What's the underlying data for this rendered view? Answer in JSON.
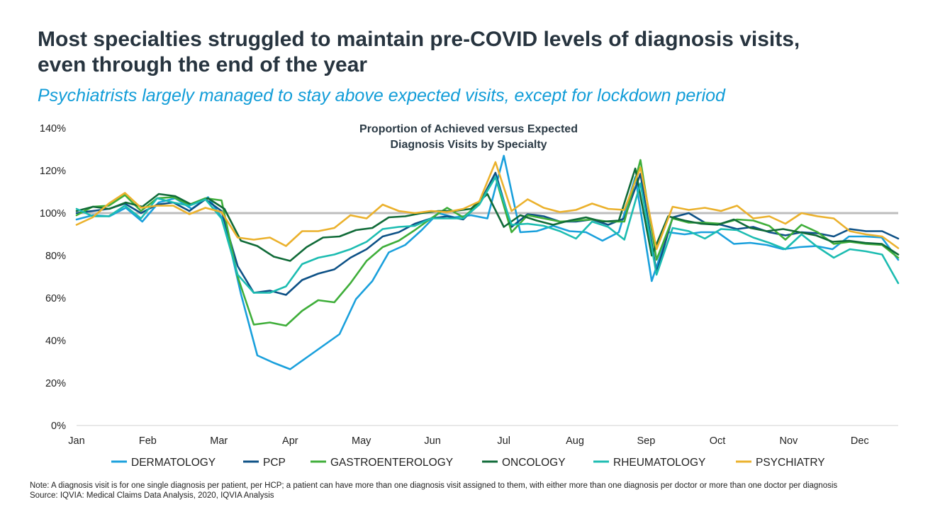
{
  "header": {
    "title_line1": "Most specialties struggled to maintain pre-COVID levels of diagnosis visits,",
    "title_line2": "even through the end of the year",
    "subtitle": "Psychiatrists largely managed to stay above expected visits, except for lockdown period"
  },
  "footer": {
    "note": "Note: A diagnosis visit is for one single diagnosis per patient, per HCP; a patient can have more than one diagnosis visit assigned to them, with either more than one diagnosis per doctor or more than one doctor per diagnosis",
    "source": "Source: IQVIA: Medical Claims Data Analysis, 2020, IQVIA Analysis"
  },
  "chart_data": {
    "type": "line",
    "title": "Proportion of Achieved versus Expected Diagnosis Visits by Specialty",
    "title_lines": [
      "Proportion of Achieved versus Expected",
      "Diagnosis Visits by Specialty"
    ],
    "ylim": [
      0,
      140
    ],
    "yticks": [
      0,
      20,
      40,
      60,
      80,
      100,
      120,
      140
    ],
    "ytick_labels": [
      "0%",
      "20%",
      "40%",
      "60%",
      "80%",
      "100%",
      "120%",
      "140%"
    ],
    "xlim": [
      0,
      50
    ],
    "x_month_labels": [
      "Jan",
      "Feb",
      "Mar",
      "Apr",
      "May",
      "Jun",
      "Jul",
      "Aug",
      "Sep",
      "Oct",
      "Nov",
      "Dec"
    ],
    "x_month_positions": [
      0,
      4.33,
      8.66,
      13,
      17.33,
      21.66,
      26,
      30.33,
      34.66,
      39,
      43.33,
      47.66
    ],
    "reference_line": 100,
    "reference_color": "#bdbdbd",
    "legend_position": "bottom",
    "series": [
      {
        "name": "DERMATOLOGY",
        "color": "#1aa0dc",
        "values": [
          97,
          99,
          98.5,
          102.5,
          96,
          105,
          107,
          102,
          107.5,
          96,
          62,
          33,
          29.5,
          26.5,
          32,
          37.5,
          43,
          59.5,
          68,
          81.5,
          85,
          92,
          100,
          98,
          99,
          97.5,
          127,
          91,
          91.5,
          94,
          91.5,
          91,
          87,
          91,
          117,
          68,
          91,
          90,
          91,
          91,
          85.5,
          86,
          85,
          83,
          84,
          84.5,
          83,
          89,
          89,
          88.5,
          78
        ]
      },
      {
        "name": "PCP",
        "color": "#0d5186",
        "values": [
          100,
          101,
          102,
          104.5,
          100,
          104,
          105,
          101,
          106.5,
          101,
          75,
          62.5,
          63.5,
          61.5,
          68.5,
          71.5,
          73.5,
          79,
          83,
          89,
          91,
          95,
          97.5,
          98.5,
          97,
          104.5,
          119,
          93.5,
          99.5,
          98.5,
          96,
          96,
          97,
          94.5,
          97.5,
          118.5,
          72,
          98,
          100,
          95.5,
          94.5,
          92.5,
          93.5,
          91,
          89.5,
          91,
          90.5,
          89,
          92.5,
          91.5,
          91.5,
          88
        ]
      },
      {
        "name": "GASTROENTEROLOGY",
        "color": "#3fae3a",
        "values": [
          99,
          103,
          103.5,
          108.5,
          101,
          107,
          107.5,
          104,
          107,
          106,
          70,
          47.5,
          48.5,
          47,
          54,
          59,
          58,
          67,
          77.5,
          84,
          87,
          92,
          97.5,
          102.5,
          98,
          104.5,
          117,
          91,
          99,
          97.5,
          96,
          96.5,
          97,
          96,
          96,
          125,
          78,
          97.5,
          95.5,
          95.5,
          95,
          97,
          96.5,
          94,
          87.5,
          94.5,
          91,
          85.5,
          86.5,
          85.5,
          85,
          79
        ]
      },
      {
        "name": "ONCOLOGY",
        "color": "#106b38",
        "values": [
          101,
          103,
          102,
          105,
          103,
          109,
          108,
          104,
          107,
          102,
          87,
          84.5,
          79.5,
          77.5,
          84,
          88.5,
          89,
          92,
          93,
          98,
          98.5,
          100,
          101,
          101,
          102,
          109,
          93.5,
          99,
          96.5,
          94.5,
          96.5,
          98,
          96,
          96.5,
          121,
          80,
          98.5,
          96.5,
          95,
          94.5,
          97,
          93,
          91.5,
          92.5,
          91,
          89.5,
          86.5,
          87,
          86,
          85.5,
          80.5
        ]
      },
      {
        "name": "RHEUMATOLOGY",
        "color": "#1cbcb1",
        "values": [
          102,
          98.5,
          98.5,
          103.5,
          97.5,
          107,
          105,
          103.5,
          106.5,
          97.5,
          71,
          62.5,
          62.5,
          65.5,
          76,
          79,
          80.5,
          83,
          86.5,
          92.5,
          93.5,
          94,
          97.5,
          97.5,
          97.5,
          104,
          117,
          94.5,
          95,
          94,
          91.5,
          88,
          96,
          93.5,
          87.5,
          114,
          71,
          93,
          91.5,
          88,
          92.5,
          92,
          88.5,
          86,
          83,
          90,
          84,
          79,
          83,
          82,
          80.5,
          67
        ]
      },
      {
        "name": "PSYCHIATRY",
        "color": "#ebb12c",
        "values": [
          94.5,
          98,
          104.5,
          109.5,
          102.5,
          103.5,
          103.5,
          99.5,
          102.5,
          100.5,
          88.5,
          87.5,
          88.5,
          84.5,
          91.5,
          91.5,
          93,
          99,
          97.5,
          104,
          101,
          100,
          101,
          100.5,
          102,
          105.5,
          124,
          101,
          106.5,
          102.5,
          100.5,
          101.5,
          104.5,
          102,
          101.5,
          121.5,
          83,
          103,
          101.5,
          102.5,
          101,
          103.5,
          97.5,
          98.5,
          95,
          100,
          98.5,
          97.5,
          91.5,
          90,
          89,
          83.5
        ]
      }
    ]
  }
}
